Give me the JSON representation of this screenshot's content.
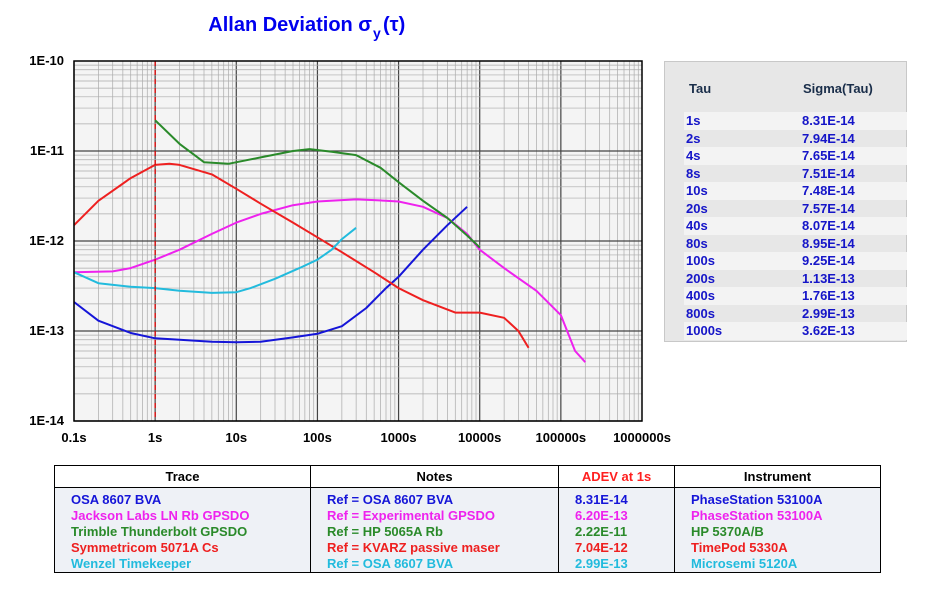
{
  "chart_data": {
    "type": "line",
    "title": "Allan Deviation σ",
    "title_sub": "y",
    "title_tail": "(τ)",
    "xscale": "log",
    "yscale": "log",
    "xlim": [
      0.1,
      1000000
    ],
    "ylim": [
      1e-14,
      1e-10
    ],
    "x_tick_labels": [
      "0.1s",
      "1s",
      "10s",
      "100s",
      "1000s",
      "10000s",
      "100000s",
      "1000000s"
    ],
    "y_tick_labels": [
      "1E-10",
      "1E-11",
      "1E-12",
      "1E-13",
      "1E-14"
    ],
    "grid": true,
    "reference_line": {
      "x": 1,
      "style": "dashed",
      "color": "#dd0000"
    },
    "series": [
      {
        "name": "OSA 8607 BVA",
        "color": "#1515d8",
        "x": [
          0.1,
          0.2,
          0.5,
          1,
          2,
          5,
          10,
          20,
          50,
          100,
          200,
          400,
          700,
          1000,
          2000,
          4000,
          7000
        ],
        "y": [
          2.1e-13,
          1.3e-13,
          9.5e-14,
          8.3e-14,
          8e-14,
          7.6e-14,
          7.5e-14,
          7.6e-14,
          8.5e-14,
          9.3e-14,
          1.13e-13,
          1.8e-13,
          3e-13,
          4e-13,
          8e-13,
          1.5e-12,
          2.4e-12
        ]
      },
      {
        "name": "Jackson Labs LN Rb GPSDO",
        "color": "#ee22ee",
        "x": [
          0.1,
          0.3,
          0.5,
          1,
          2,
          5,
          10,
          20,
          50,
          100,
          200,
          300,
          500,
          1000,
          2000,
          4000,
          7000,
          10000,
          20000,
          50000,
          100000,
          150000,
          200000
        ],
        "y": [
          4.5e-13,
          4.6e-13,
          5e-13,
          6.2e-13,
          8e-13,
          1.2e-12,
          1.6e-12,
          2e-12,
          2.5e-12,
          2.75e-12,
          2.85e-12,
          2.9e-12,
          2.85e-12,
          2.75e-12,
          2.4e-12,
          1.8e-12,
          1.2e-12,
          8e-13,
          5e-13,
          2.8e-13,
          1.5e-13,
          6e-14,
          4.5e-14
        ]
      },
      {
        "name": "Trimble Thunderbolt GPSDO",
        "color": "#2a8a2a",
        "x": [
          1,
          2,
          4,
          8,
          20,
          50,
          80,
          150,
          300,
          600,
          1000,
          2000,
          4000,
          7000,
          10000
        ],
        "y": [
          2.2e-11,
          1.2e-11,
          7.5e-12,
          7.2e-12,
          8.5e-12,
          1e-11,
          1.05e-11,
          9.8e-12,
          9e-12,
          6.5e-12,
          4.5e-12,
          2.8e-12,
          1.8e-12,
          1.15e-12,
          8.5e-13
        ]
      },
      {
        "name": "Symmetricom 5071A Cs",
        "color": "#ee2020",
        "x": [
          0.1,
          0.2,
          0.5,
          1,
          1.5,
          2,
          5,
          10,
          20,
          50,
          100,
          200,
          500,
          1000,
          2000,
          5000,
          10000,
          20000,
          30000,
          40000
        ],
        "y": [
          1.5e-12,
          2.8e-12,
          5e-12,
          7e-12,
          7.2e-12,
          7e-12,
          5.5e-12,
          3.8e-12,
          2.6e-12,
          1.6e-12,
          1.1e-12,
          7.5e-13,
          4.5e-13,
          3e-13,
          2.2e-13,
          1.6e-13,
          1.6e-13,
          1.4e-13,
          1e-13,
          6.5e-14
        ]
      },
      {
        "name": "Wenzel Timekeeper",
        "color": "#22bbdd",
        "x": [
          0.1,
          0.2,
          0.5,
          1,
          2,
          5,
          10,
          15,
          30,
          60,
          100,
          150,
          200,
          300
        ],
        "y": [
          4.5e-13,
          3.4e-13,
          3.1e-13,
          3e-13,
          2.8e-13,
          2.65e-13,
          2.7e-13,
          3e-13,
          3.8e-13,
          5e-13,
          6.2e-13,
          8e-13,
          1.05e-12,
          1.4e-12
        ]
      }
    ]
  },
  "tau_table": {
    "headers": {
      "tau": "Tau",
      "sigma": "Sigma(Tau)"
    },
    "rows": [
      {
        "tau": "1s",
        "sigma": "8.31E-14"
      },
      {
        "tau": "2s",
        "sigma": "7.94E-14"
      },
      {
        "tau": "4s",
        "sigma": "7.65E-14"
      },
      {
        "tau": "8s",
        "sigma": "7.51E-14"
      },
      {
        "tau": "10s",
        "sigma": "7.48E-14"
      },
      {
        "tau": "20s",
        "sigma": "7.57E-14"
      },
      {
        "tau": "40s",
        "sigma": "8.07E-14"
      },
      {
        "tau": "80s",
        "sigma": "8.95E-14"
      },
      {
        "tau": "100s",
        "sigma": "9.25E-14"
      },
      {
        "tau": "200s",
        "sigma": "1.13E-13"
      },
      {
        "tau": "400s",
        "sigma": "1.76E-13"
      },
      {
        "tau": "800s",
        "sigma": "2.99E-13"
      },
      {
        "tau": "1000s",
        "sigma": "3.62E-13"
      }
    ]
  },
  "legend_table": {
    "headers": {
      "trace": "Trace",
      "notes": "Notes",
      "adev": "ADEV at 1s",
      "instrument": "Instrument"
    },
    "rows": [
      {
        "trace": "OSA 8607 BVA",
        "notes": "Ref = OSA 8607 BVA",
        "adev": "8.31E-14",
        "instrument": "PhaseStation 53100A",
        "color": "#1515d8"
      },
      {
        "trace": "Jackson Labs LN Rb GPSDO",
        "notes": "Ref = Experimental GPSDO",
        "adev": "6.20E-13",
        "instrument": "PhaseStation 53100A",
        "color": "#ee22ee"
      },
      {
        "trace": "Trimble Thunderbolt GPSDO",
        "notes": "Ref = HP 5065A Rb",
        "adev": "2.22E-11",
        "instrument": "HP 5370A/B",
        "color": "#2a8a2a"
      },
      {
        "trace": "Symmetricom 5071A Cs",
        "notes": "Ref = KVARZ passive maser",
        "adev": "7.04E-12",
        "instrument": "TimePod 5330A",
        "color": "#ee2020"
      },
      {
        "trace": "Wenzel Timekeeper",
        "notes": "Ref = OSA 8607 BVA",
        "adev": "2.99E-13",
        "instrument": "Microsemi 5120A",
        "color": "#22bbdd"
      }
    ]
  }
}
